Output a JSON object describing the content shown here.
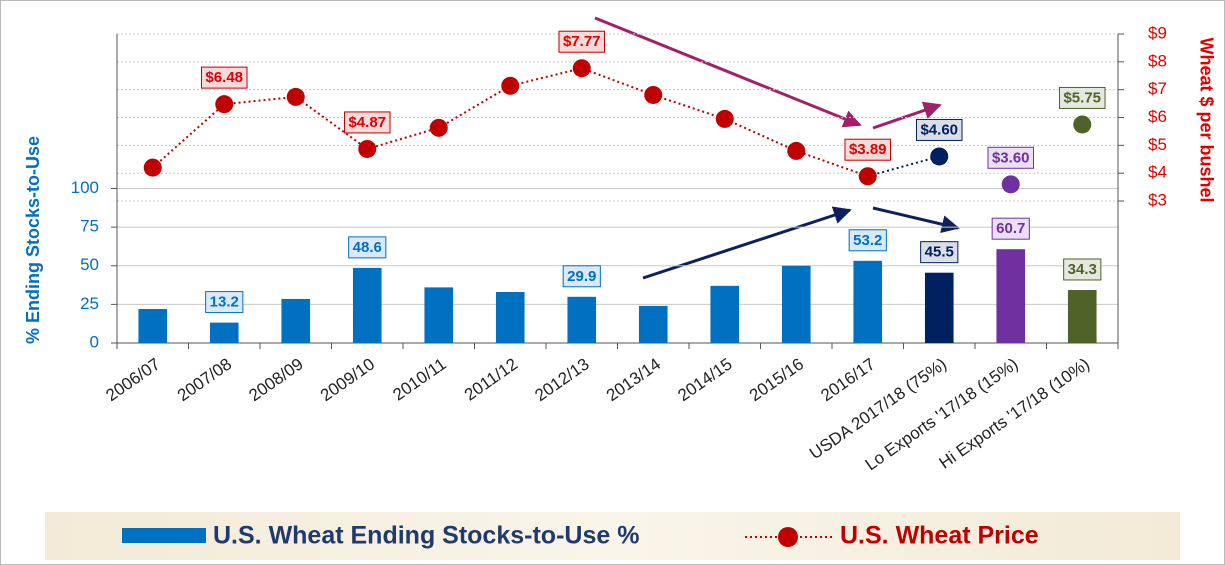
{
  "chart_data": {
    "type": "bar",
    "categories": [
      "2006/07",
      "2007/08",
      "2008/09",
      "2009/10",
      "2010/11",
      "2011/12",
      "2012/13",
      "2013/14",
      "2014/15",
      "2015/16",
      "2016/17",
      "USDA 2017/18 (75%)",
      "Lo Exports '17/18 (15%)",
      "Hi Exports '17/18 (10%)"
    ],
    "ylabel": "% Ending Stocks-to-Use",
    "y2label": "Wheat $ per bushel",
    "ylim": [
      0,
      200
    ],
    "yticks": [
      0,
      25,
      50,
      75,
      100
    ],
    "y2lim": [
      -2.1,
      9
    ],
    "y2ticks": [
      {
        "value": 3,
        "label": "$3"
      },
      {
        "value": 4,
        "label": "$4"
      },
      {
        "value": 5,
        "label": "$5"
      },
      {
        "value": 6,
        "label": "$6"
      },
      {
        "value": 7,
        "label": "$7"
      },
      {
        "value": 8,
        "label": "$8"
      },
      {
        "value": 9,
        "label": "$9"
      }
    ],
    "grid": true,
    "series": [
      {
        "name": "U.S. Wheat Ending Stocks-to-Use %",
        "type": "bar",
        "color": "#0070c0",
        "colors": [
          "#0070c0",
          "#0070c0",
          "#0070c0",
          "#0070c0",
          "#0070c0",
          "#0070c0",
          "#0070c0",
          "#0070c0",
          "#0070c0",
          "#0070c0",
          "#0070c0",
          "#002060",
          "#7030a0",
          "#4f6228"
        ],
        "values": [
          22,
          13.2,
          28.5,
          48.6,
          36,
          33,
          29.9,
          24,
          37,
          50,
          53.2,
          45.5,
          60.7,
          34.3
        ],
        "value_labels": [
          null,
          "13.2",
          null,
          "48.6",
          null,
          null,
          "29.9",
          null,
          null,
          null,
          "53.2",
          "45.5",
          "60.7",
          "34.3"
        ]
      },
      {
        "name": "U.S. Wheat Price",
        "type": "line",
        "axis": "y2",
        "color": "#c00000",
        "colors": [
          "#c00000",
          "#c00000",
          "#c00000",
          "#c00000",
          "#c00000",
          "#c00000",
          "#c00000",
          "#c00000",
          "#c00000",
          "#c00000",
          "#c00000",
          "#002060",
          "#7030a0",
          "#4f6228"
        ],
        "values": [
          4.2,
          6.48,
          6.74,
          4.87,
          5.63,
          7.14,
          7.77,
          6.81,
          5.95,
          4.8,
          3.89,
          4.6,
          3.6,
          5.75
        ],
        "value_labels": [
          null,
          "$6.48",
          null,
          "$4.87",
          null,
          null,
          "$7.77",
          null,
          null,
          null,
          "$3.89",
          "$4.60",
          "$3.60",
          "$5.75"
        ]
      }
    ]
  }
}
